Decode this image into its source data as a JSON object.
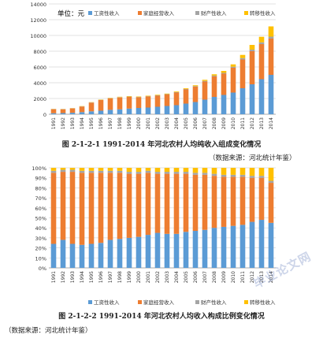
{
  "chart_data": [
    {
      "type": "bar",
      "stacked": true,
      "title": "",
      "unit_label": "单位：元",
      "categories": [
        "1991",
        "1992",
        "1993",
        "1994",
        "1995",
        "1996",
        "1997",
        "1998",
        "1999",
        "2000",
        "2001",
        "2002",
        "2003",
        "2004",
        "2005",
        "2006",
        "2007",
        "2008",
        "2009",
        "2010",
        "2011",
        "2012",
        "2013",
        "2014"
      ],
      "series": [
        {
          "name": "工资性收入",
          "color": "#5b9bd5",
          "values": [
            130,
            150,
            190,
            270,
            370,
            450,
            560,
            630,
            720,
            800,
            850,
            950,
            1050,
            1150,
            1350,
            1550,
            1850,
            2200,
            2450,
            2750,
            3300,
            3800,
            4450,
            5000
          ]
        },
        {
          "name": "家庭经营收入",
          "color": "#ed7d31",
          "values": [
            510,
            480,
            550,
            710,
            1100,
            1350,
            1450,
            1500,
            1480,
            1350,
            1400,
            1400,
            1450,
            1600,
            1800,
            1950,
            2300,
            2600,
            2700,
            3150,
            3650,
            4200,
            4450,
            4600
          ]
        },
        {
          "name": "财产性收入",
          "color": "#a5a5a5",
          "values": [
            20,
            20,
            20,
            20,
            30,
            30,
            30,
            40,
            40,
            40,
            40,
            50,
            50,
            50,
            60,
            70,
            80,
            90,
            100,
            130,
            180,
            200,
            230,
            250
          ]
        },
        {
          "name": "转移性收入",
          "color": "#ffc000",
          "values": [
            20,
            20,
            20,
            30,
            30,
            40,
            40,
            50,
            60,
            60,
            60,
            70,
            70,
            80,
            90,
            110,
            140,
            180,
            250,
            300,
            400,
            600,
            700,
            1300
          ]
        }
      ],
      "ylim": [
        0,
        14000
      ],
      "yticks": [
        0,
        2000,
        4000,
        6000,
        8000,
        10000,
        12000,
        14000
      ],
      "legend": "top-left"
    },
    {
      "type": "bar",
      "stacked": true,
      "percent": true,
      "title": "",
      "categories": [
        "1991",
        "1992",
        "1993",
        "1994",
        "1995",
        "1996",
        "1997",
        "1998",
        "1999",
        "2000",
        "2001",
        "2002",
        "2003",
        "2004",
        "2005",
        "2006",
        "2007",
        "2008",
        "2009",
        "2010",
        "2011",
        "2012",
        "2013",
        "2014"
      ],
      "series": [
        {
          "name": "工资性收入",
          "color": "#5b9bd5",
          "values": [
            24,
            28,
            24,
            23,
            24,
            25,
            28,
            29,
            30,
            31,
            33,
            35,
            34,
            34,
            36,
            37,
            38,
            40,
            41,
            42,
            43,
            46,
            48,
            45
          ]
        },
        {
          "name": "家庭经营收入",
          "color": "#ed7d31",
          "values": [
            71,
            68,
            72,
            72,
            71,
            70,
            67,
            66,
            64,
            63,
            62,
            59,
            60,
            60,
            58,
            56,
            55,
            52,
            50,
            49,
            48,
            44,
            42,
            40
          ]
        },
        {
          "name": "财产性收入",
          "color": "#a5a5a5",
          "values": [
            2,
            2,
            2,
            2,
            2,
            2,
            2,
            2,
            2,
            2,
            2,
            2,
            2,
            2,
            2,
            2,
            2,
            2,
            2,
            2,
            2,
            2,
            2,
            2
          ]
        },
        {
          "name": "转移性收入",
          "color": "#ffc000",
          "values": [
            3,
            2,
            2,
            3,
            3,
            3,
            3,
            3,
            4,
            4,
            3,
            4,
            4,
            4,
            4,
            5,
            5,
            6,
            7,
            7,
            7,
            8,
            8,
            13
          ]
        }
      ],
      "ylim": [
        0,
        100
      ],
      "yticks": [
        "0%",
        "10%",
        "20%",
        "30%",
        "40%",
        "50%",
        "60%",
        "70%",
        "80%",
        "90%",
        "100%"
      ],
      "legend": "bottom"
    }
  ],
  "captions": {
    "fig1": "图 2-1-2-1    1991-2014 年河北农村人均纯收入组成变化情况",
    "source1": "（数据来源：河北统计年鉴）",
    "fig2": "图 2-1-2-2    1991-2014 年河北农村人均收入构成比例变化情况",
    "source2": "（数据来源：河北统计年鉴）",
    "watermark": "毕业论文网"
  }
}
